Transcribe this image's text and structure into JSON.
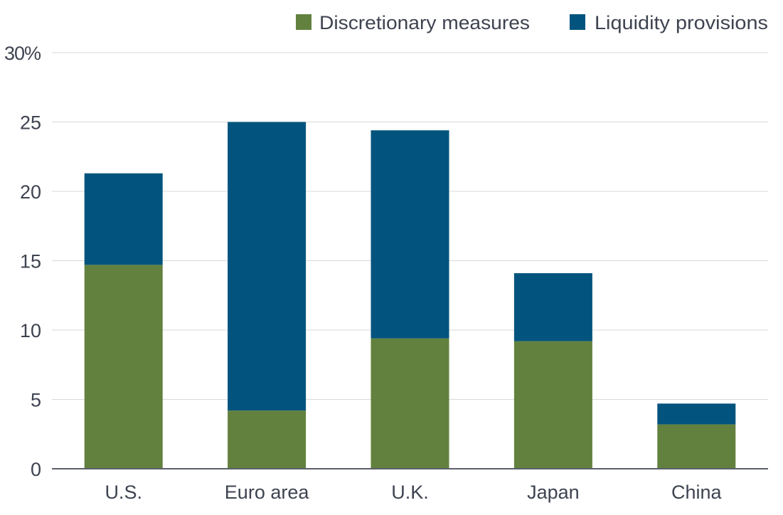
{
  "chart_data": {
    "type": "bar",
    "stacked": true,
    "categories": [
      "U.S.",
      "Euro area",
      "U.K.",
      "Japan",
      "China"
    ],
    "series": [
      {
        "name": "Discretionary measures",
        "color": "#62813e",
        "values": [
          14.7,
          4.2,
          9.4,
          9.2,
          3.2
        ]
      },
      {
        "name": "Liquidity provisions",
        "color": "#02547e",
        "values": [
          6.6,
          20.8,
          15.0,
          4.9,
          1.5
        ]
      }
    ],
    "ylim": [
      0,
      30
    ],
    "yticks": [
      0,
      5,
      10,
      15,
      20,
      25,
      30
    ],
    "ytick_labels": [
      "0",
      "5",
      "10",
      "15",
      "20",
      "25",
      "30%"
    ],
    "grid": true,
    "legend_position": "top-right",
    "title": "",
    "xlabel": "",
    "ylabel": ""
  }
}
